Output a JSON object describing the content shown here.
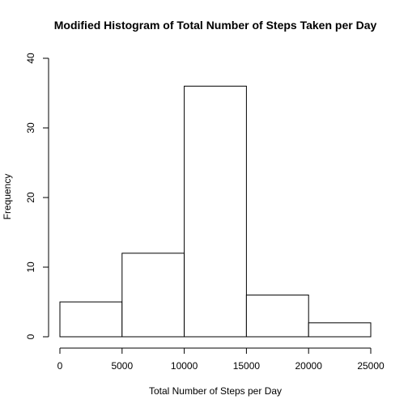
{
  "chart_data": {
    "type": "bar",
    "title": "Modified Histogram of Total Number of Steps Taken per Day",
    "xlabel": "Total Number of Steps per Day",
    "ylabel": "Frequency",
    "bins": [
      {
        "start": 0,
        "end": 5000,
        "count": 5
      },
      {
        "start": 5000,
        "end": 10000,
        "count": 12
      },
      {
        "start": 10000,
        "end": 15000,
        "count": 36
      },
      {
        "start": 15000,
        "end": 20000,
        "count": 6
      },
      {
        "start": 20000,
        "end": 25000,
        "count": 2
      }
    ],
    "xlim": [
      0,
      25000
    ],
    "ylim": [
      0,
      40
    ],
    "x_ticks": [
      "0",
      "5000",
      "10000",
      "15000",
      "20000",
      "25000"
    ],
    "y_ticks": [
      "0",
      "10",
      "20",
      "30",
      "40"
    ],
    "grid": false,
    "colors": {
      "bar_fill": "#ffffff",
      "bar_stroke": "#000000"
    }
  }
}
